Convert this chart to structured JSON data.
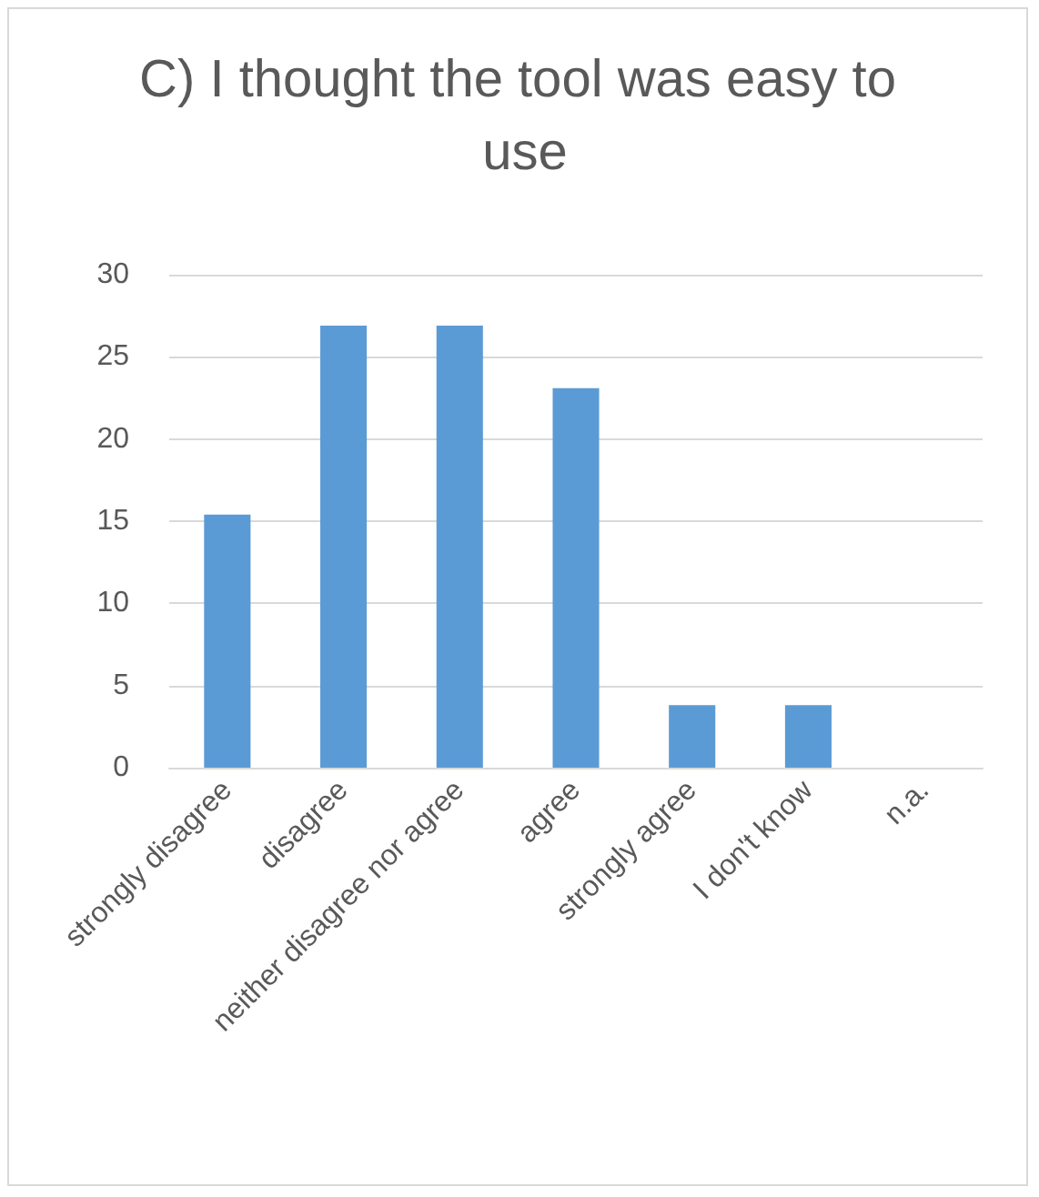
{
  "chart_data": {
    "type": "bar",
    "title": "C) I thought the tool was easy to use",
    "categories": [
      "strongly disagree",
      "disagree",
      "neither disagree nor agree",
      "agree",
      "strongly agree",
      "I don't know",
      "n.a."
    ],
    "values": [
      15.4,
      26.9,
      26.9,
      23.1,
      3.8,
      3.8,
      0
    ],
    "color": "#5b9bd5",
    "ylim": [
      0,
      30
    ],
    "yticks": [
      0,
      5,
      10,
      15,
      20,
      25,
      30
    ],
    "grid": "y"
  }
}
